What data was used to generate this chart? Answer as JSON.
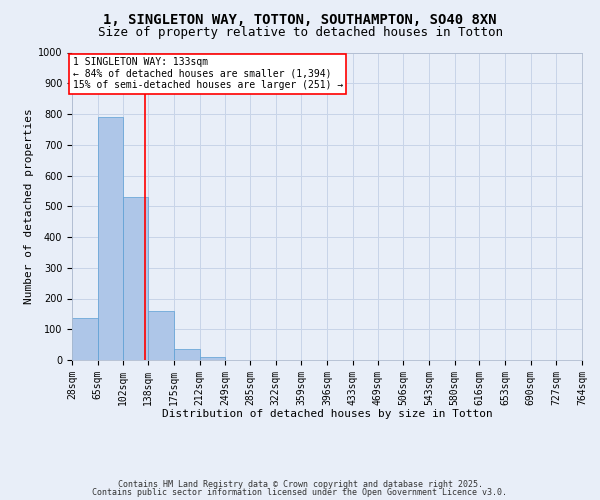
{
  "title": "1, SINGLETON WAY, TOTTON, SOUTHAMPTON, SO40 8XN",
  "subtitle": "Size of property relative to detached houses in Totton",
  "xlabel": "Distribution of detached houses by size in Totton",
  "ylabel": "Number of detached properties",
  "bar_values": [
    135,
    790,
    530,
    160,
    35,
    10,
    0,
    0,
    0,
    0,
    0,
    0,
    0,
    0,
    0,
    0,
    0,
    0,
    0,
    0
  ],
  "bin_edges": [
    28,
    65,
    102,
    138,
    175,
    212,
    249,
    285,
    322,
    359,
    396,
    433,
    469,
    506,
    543,
    580,
    616,
    653,
    690,
    727,
    764
  ],
  "x_tick_labels": [
    "28sqm",
    "65sqm",
    "102sqm",
    "138sqm",
    "175sqm",
    "212sqm",
    "249sqm",
    "285sqm",
    "322sqm",
    "359sqm",
    "396sqm",
    "433sqm",
    "469sqm",
    "506sqm",
    "543sqm",
    "580sqm",
    "616sqm",
    "653sqm",
    "690sqm",
    "727sqm",
    "764sqm"
  ],
  "bar_color": "#aec6e8",
  "bar_edge_color": "#5a9fd4",
  "property_line_x": 133,
  "property_line_color": "red",
  "annotation_text": "1 SINGLETON WAY: 133sqm\n← 84% of detached houses are smaller (1,394)\n15% of semi-detached houses are larger (251) →",
  "annotation_box_color": "#ffffff",
  "annotation_box_edge_color": "red",
  "ylim": [
    0,
    1000
  ],
  "yticks": [
    0,
    100,
    200,
    300,
    400,
    500,
    600,
    700,
    800,
    900,
    1000
  ],
  "footnote1": "Contains HM Land Registry data © Crown copyright and database right 2025.",
  "footnote2": "Contains public sector information licensed under the Open Government Licence v3.0.",
  "background_color": "#e8eef8",
  "grid_color": "#c8d4e8",
  "title_fontsize": 10,
  "subtitle_fontsize": 9,
  "xlabel_fontsize": 8,
  "ylabel_fontsize": 8,
  "tick_fontsize": 7,
  "annotation_fontsize": 7,
  "footnote_fontsize": 6
}
